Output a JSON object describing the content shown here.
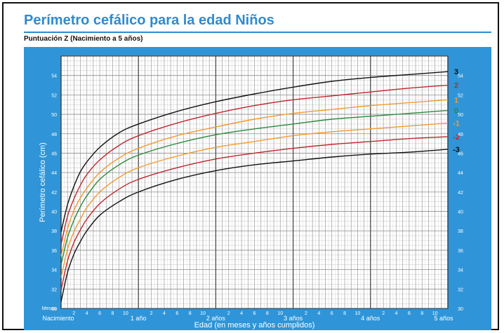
{
  "header": {
    "title": "Perímetro cefálico para la edad  Niños",
    "subtitle": "Puntuación Z (Nacimiento a 5 años)"
  },
  "chart_data": {
    "type": "line",
    "title": "Perímetro cefálico para la edad  Niños",
    "subtitle": "Puntuación Z (Nacimiento a 5 años)",
    "xlabel": "Edad (en meses y años cumplidos)",
    "ylabel": "Perímetro cefálico (cm)",
    "x_unit_label": "Meses",
    "xlim": [
      0,
      60
    ],
    "ylim": [
      30,
      56
    ],
    "y_ticks": [
      30,
      32,
      34,
      36,
      38,
      40,
      42,
      44,
      46,
      48,
      50,
      52,
      54
    ],
    "x_minor_tick_labels": [
      "2",
      "4",
      "6",
      "8",
      "10"
    ],
    "x_year_labels": [
      {
        "month": 0,
        "label": "Nacimiento"
      },
      {
        "month": 12,
        "label": "1 año"
      },
      {
        "month": 24,
        "label": "2 años"
      },
      {
        "month": 36,
        "label": "3 años"
      },
      {
        "month": 48,
        "label": "4 años"
      },
      {
        "month": 60,
        "label": "5 años"
      }
    ],
    "grid": true,
    "x": [
      0,
      1,
      2,
      3,
      4,
      6,
      9,
      12,
      18,
      24,
      30,
      36,
      42,
      48,
      54,
      60
    ],
    "series": [
      {
        "name": "3",
        "color": "#111111",
        "values": [
          37.9,
          40.7,
          42.6,
          44.1,
          45.1,
          46.6,
          48.1,
          49.0,
          50.3,
          51.3,
          52.1,
          52.8,
          53.4,
          53.8,
          54.1,
          54.4
        ]
      },
      {
        "name": "2",
        "color": "#c0272d",
        "values": [
          36.6,
          39.5,
          41.3,
          42.7,
          43.8,
          45.3,
          46.8,
          47.8,
          49.1,
          50.1,
          50.9,
          51.5,
          51.9,
          52.3,
          52.7,
          53.0
        ]
      },
      {
        "name": "1",
        "color": "#f29a2e",
        "values": [
          35.4,
          38.2,
          40.1,
          41.4,
          42.4,
          44.0,
          45.5,
          46.5,
          47.8,
          48.7,
          49.5,
          50.1,
          50.5,
          50.9,
          51.2,
          51.5
        ]
      },
      {
        "name": "0",
        "color": "#2a8a3a",
        "values": [
          34.5,
          37.3,
          39.1,
          40.5,
          41.6,
          43.3,
          44.8,
          45.8,
          47.0,
          47.9,
          48.5,
          49.0,
          49.5,
          49.8,
          50.1,
          50.4
        ]
      },
      {
        "name": "-1",
        "color": "#f29a2e",
        "values": [
          33.2,
          36.1,
          37.9,
          39.2,
          40.4,
          42.0,
          43.5,
          44.5,
          45.7,
          46.6,
          47.2,
          47.8,
          48.2,
          48.5,
          48.8,
          49.1
        ]
      },
      {
        "name": "-2",
        "color": "#c0272d",
        "values": [
          31.9,
          34.9,
          36.8,
          38.1,
          39.2,
          40.8,
          42.3,
          43.3,
          44.5,
          45.4,
          46.0,
          46.5,
          46.9,
          47.2,
          47.5,
          47.7
        ]
      },
      {
        "name": "-3",
        "color": "#111111",
        "values": [
          30.7,
          33.7,
          35.6,
          36.9,
          38.0,
          39.6,
          41.0,
          42.0,
          43.3,
          44.2,
          44.8,
          45.2,
          45.6,
          45.9,
          46.1,
          46.4
        ]
      }
    ],
    "colors": {
      "panel": "#2f95d8",
      "plot_bg": "#ffffff",
      "title": "#2e8bd0"
    }
  }
}
